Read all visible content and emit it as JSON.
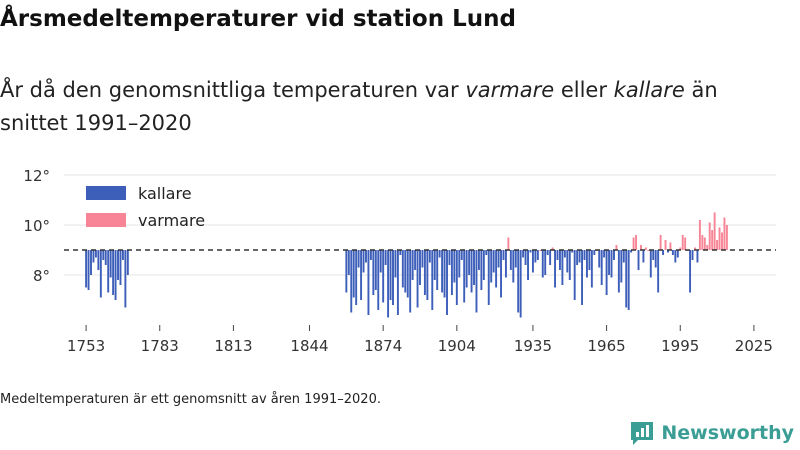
{
  "title": "Årsmedeltemperaturer vid station Lund",
  "subtitle": {
    "part1": "År då den genomsnittliga temperaturen var ",
    "warm_word": "varmare",
    "part2": " eller ",
    "cold_word": "kallare",
    "part3": " än snittet 1991–2020"
  },
  "footnote": "Medeltemperaturen är ett genomsnitt av åren 1991–2020.",
  "brand": "Newsworthy",
  "colors": {
    "cold": "#3d5fba",
    "warm": "#f78596",
    "grid": "#e4e4e4",
    "reference": "#333333"
  },
  "chart_data": {
    "type": "bar",
    "title": "Årsmedeltemperaturer vid station Lund",
    "xlabel": "",
    "ylabel": "",
    "reference_value": 9.0,
    "ylim": [
      6.0,
      12.6
    ],
    "xlim": [
      1744,
      2034
    ],
    "y_ticks": [
      {
        "value": 8,
        "label": "8°"
      },
      {
        "value": 10,
        "label": "10°"
      },
      {
        "value": 12,
        "label": "12°"
      }
    ],
    "x_ticks": [
      1753,
      1783,
      1813,
      1844,
      1874,
      1904,
      1935,
      1965,
      1995,
      2025
    ],
    "legend": [
      {
        "key": "cold",
        "label": "kallare"
      },
      {
        "key": "warm",
        "label": "varmare"
      }
    ],
    "series": [
      {
        "name": "Lund årsmedeltemperatur",
        "start_year": 1753,
        "values": [
          7.5,
          7.4,
          8.0,
          8.5,
          8.7,
          8.2,
          7.1,
          8.6,
          8.4,
          7.3,
          7.9,
          7.2,
          7.0,
          7.8,
          7.6,
          8.6,
          6.7,
          8.0
        ]
      },
      {
        "name": "Lund årsmedeltemperatur",
        "start_year": 1859,
        "values": [
          7.3,
          8.0,
          6.5,
          7.1,
          6.8,
          8.3,
          7.0,
          8.1,
          8.5,
          6.4,
          8.6,
          7.2,
          7.4,
          6.6,
          8.1,
          6.9,
          8.4,
          6.3,
          7.0,
          6.8,
          7.9,
          6.4,
          8.8,
          7.5,
          7.3,
          7.1,
          6.5,
          7.8,
          8.2,
          6.7,
          7.6,
          8.3,
          7.2,
          7.0,
          8.5,
          6.6,
          7.8,
          7.4,
          8.7,
          7.3,
          7.1,
          6.4,
          8.4,
          7.2,
          7.7,
          6.8,
          7.9,
          8.6,
          6.9,
          7.5,
          8.0,
          7.3,
          7.6,
          6.5,
          8.2,
          7.4,
          7.8,
          8.8,
          6.8,
          7.7,
          8.1,
          7.5,
          8.3,
          7.1,
          8.6,
          7.9,
          9.5,
          8.2,
          7.7,
          8.3,
          6.5,
          6.3,
          8.7,
          8.4,
          7.8,
          8.9,
          8.1,
          8.5,
          8.6,
          9.0,
          7.9,
          8.0,
          8.8,
          8.4,
          9.1,
          7.5,
          8.6,
          8.2,
          7.6,
          8.7,
          8.1,
          7.8,
          8.9,
          7.0,
          8.4,
          8.5,
          6.8,
          8.6,
          7.9,
          8.2,
          7.5,
          8.8,
          9.0,
          8.3,
          7.6,
          8.7,
          7.2,
          8.0,
          7.9,
          8.6,
          9.2,
          7.3,
          7.7,
          8.5,
          6.7,
          6.6,
          8.9,
          9.5,
          9.6,
          8.2,
          9.2,
          8.5,
          9.1,
          9.0,
          7.9,
          8.6,
          8.3,
          7.3,
          9.6,
          8.8,
          9.4,
          8.9,
          9.3,
          8.8,
          8.5,
          8.7,
          9.1,
          9.6,
          9.5,
          9.0,
          7.3,
          8.6,
          9.1,
          8.5,
          10.2,
          9.6,
          9.5,
          9.2,
          10.1,
          9.8,
          10.5,
          9.4,
          9.9,
          9.7,
          10.3,
          10.0
        ]
      }
    ]
  }
}
